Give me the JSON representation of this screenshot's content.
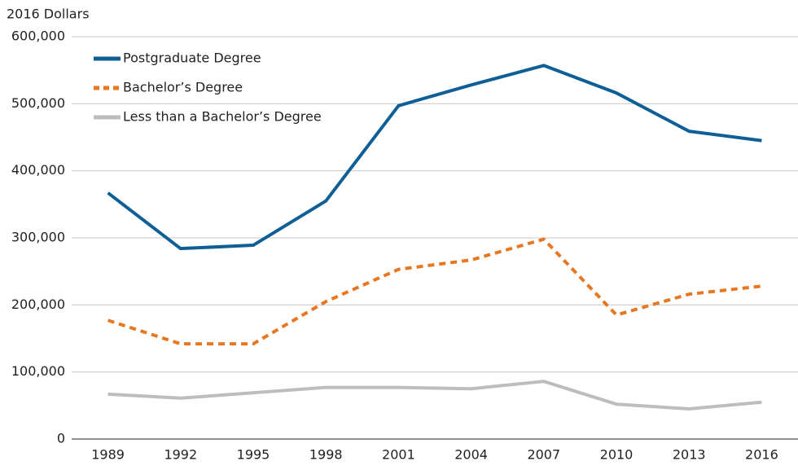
{
  "chart_data": {
    "type": "line",
    "y_label": "2016 Dollars",
    "categories": [
      "1989",
      "1992",
      "1995",
      "1998",
      "2001",
      "2004",
      "2007",
      "2010",
      "2013",
      "2016"
    ],
    "series": [
      {
        "name": "Postgraduate Degree",
        "color": "#0e5f96",
        "style": "solid",
        "values": [
          367000,
          284000,
          289000,
          355000,
          497000,
          528000,
          557000,
          516000,
          459000,
          445000
        ]
      },
      {
        "name": "Bachelor’s Degree",
        "color": "#e87722",
        "style": "dashed",
        "values": [
          177000,
          142000,
          142000,
          205000,
          253000,
          267000,
          298000,
          185000,
          216000,
          228000
        ]
      },
      {
        "name": "Less than a Bachelor’s Degree",
        "color": "#bdbdbd",
        "style": "solid",
        "values": [
          67000,
          61000,
          69000,
          77000,
          77000,
          75000,
          86000,
          52000,
          45000,
          55000
        ]
      }
    ],
    "ylim": [
      0,
      600000
    ],
    "yticks": [
      0,
      {
        "value": 100000,
        "label": "100,000"
      },
      {
        "value": 200000,
        "label": "200,000"
      },
      {
        "value": 300000,
        "label": "300,000"
      },
      {
        "value": 400000,
        "label": "400,000"
      },
      {
        "value": 500000,
        "label": "500,000"
      },
      {
        "value": 600000,
        "label": "600,000"
      }
    ],
    "grid": true,
    "legend": "top-left"
  }
}
